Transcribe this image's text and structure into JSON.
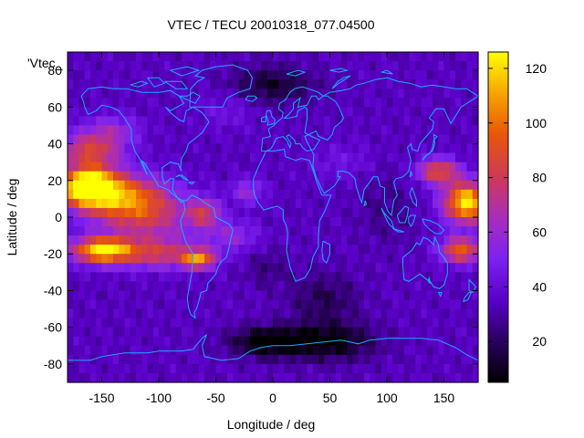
{
  "chart_data": {
    "type": "heatmap",
    "title": "VTEC / TECU 20010318_077.04500",
    "xlabel": "Longitude / deg",
    "ylabel": "Latitude / deg",
    "legend_key": "'Vtec_",
    "xlim": [
      -180,
      180
    ],
    "ylim": [
      -90,
      90
    ],
    "xticks": [
      -150,
      -100,
      -50,
      0,
      50,
      100,
      150
    ],
    "yticks": [
      -80,
      -60,
      -40,
      -20,
      0,
      20,
      40,
      60,
      80
    ],
    "colorbar": {
      "range": [
        5,
        126
      ],
      "ticks": [
        20,
        40,
        60,
        80,
        100,
        120
      ]
    },
    "grid_resolution_deg": 5,
    "colormap": [
      "#000000",
      "#2b0060",
      "#5a00c8",
      "#7d22f0",
      "#a92dba",
      "#cf3a55",
      "#e8560a",
      "#f7a400",
      "#ffff00"
    ],
    "coastline_color": "#1eaaff"
  }
}
